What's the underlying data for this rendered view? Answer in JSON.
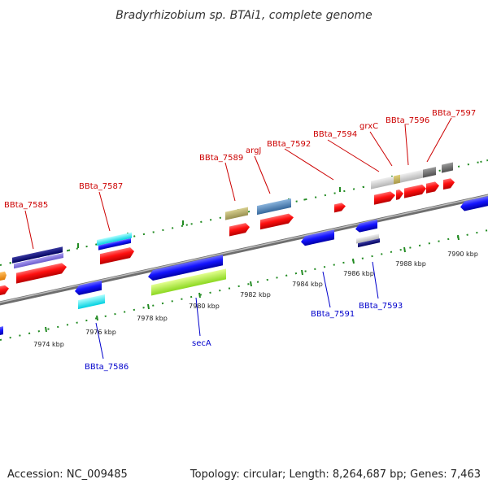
{
  "title": "Bradyrhizobium sp. BTAi1, complete genome",
  "footer": {
    "accession": "Accession: NC_009485",
    "topology": "Topology: circular; Length: 8,264,687 bp; Genes: 7,463"
  },
  "kbp_labels": [
    "7974 kbp",
    "7976 kbp",
    "7978 kbp",
    "7980 kbp",
    "7982 kbp",
    "7984 kbp",
    "7986 kbp",
    "7988 kbp",
    "7990 kbp"
  ],
  "forward_gene_labels": [
    "BBta_7585",
    "BBta_7587",
    "BBta_7589",
    "argJ",
    "BBta_7592",
    "BBta_7594",
    "grxC",
    "BBta_7596",
    "BBta_7597"
  ],
  "reverse_gene_labels": [
    "BBta_7586",
    "secA",
    "BBta_7591",
    "BBta_7593"
  ],
  "colors": {
    "forward_label": "#cc0000",
    "reverse_label": "#0000cc",
    "tick": "#228b22",
    "backbone": "#8a8a8a",
    "red_gene": "#ff1a1a",
    "blue_gene": "#1a1aff"
  }
}
